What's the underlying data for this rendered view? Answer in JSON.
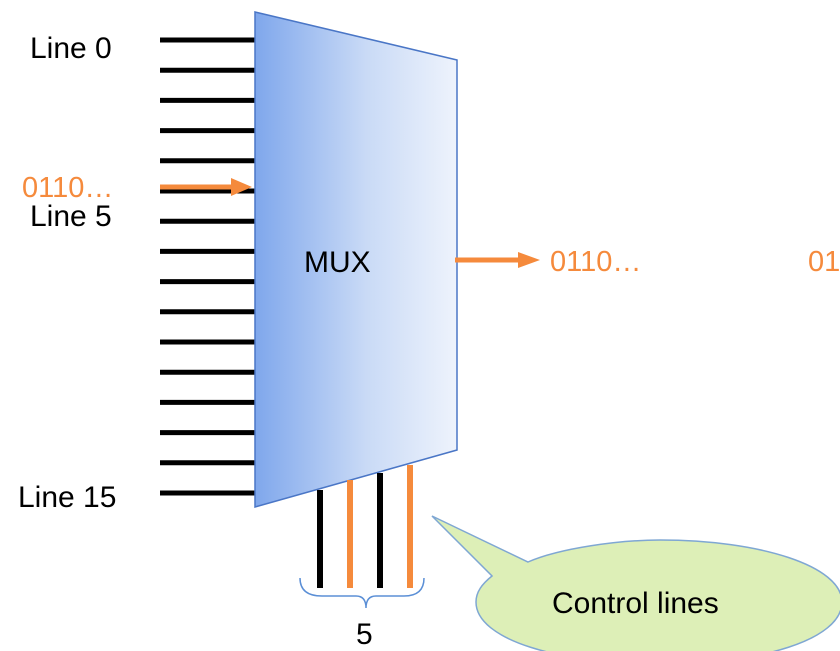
{
  "line_labels": {
    "first": "Line 0",
    "middle": "Line 5",
    "last": "Line 15"
  },
  "input_data": "0110…",
  "mux_label": "MUX",
  "output_data": "0110…",
  "output_data_partial": "01",
  "control_count": "5",
  "callout": "Control lines",
  "colors": {
    "mux_fill_dark": "#7FA7EC",
    "mux_fill_light": "#EAF1FB",
    "mux_stroke": "#4A76C6",
    "data_orange": "#F58A3C",
    "line_black": "#000000",
    "callout_fill": "#DDEFB7",
    "callout_stroke": "#7FA7D3",
    "brace_color": "#5B8FD6"
  }
}
